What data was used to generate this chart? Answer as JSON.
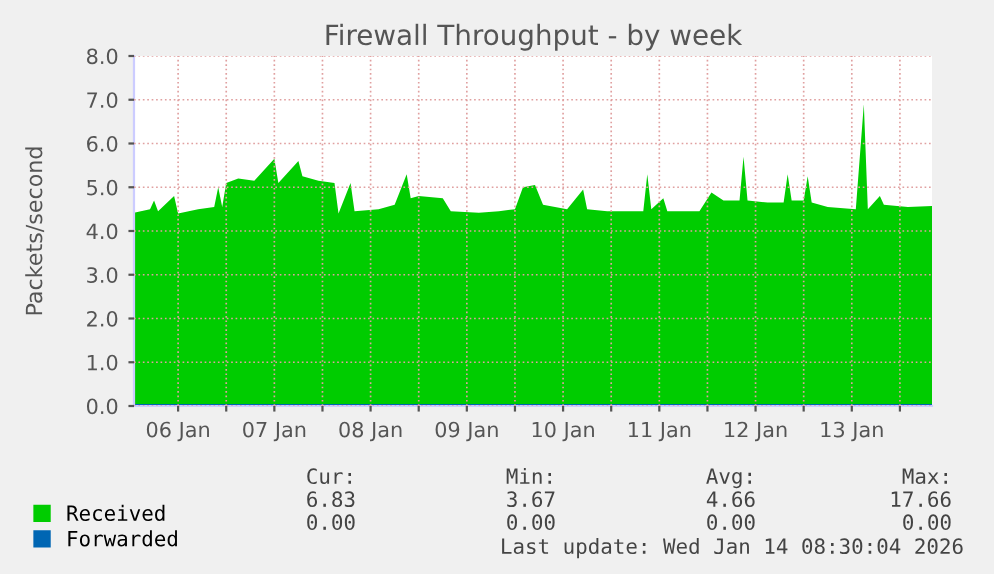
{
  "chart_data": {
    "type": "area",
    "title": "Firewall Throughput - by week",
    "ylabel": "Packets/second",
    "x": [
      "2026-01-06T01:00",
      "2026-01-06T05:00",
      "2026-01-06T06:00",
      "2026-01-06T07:00",
      "2026-01-06T11:00",
      "2026-01-06T12:00",
      "2026-01-06T17:00",
      "2026-01-06T21:00",
      "2026-01-06T22:00",
      "2026-01-06T23:00",
      "2026-01-07T00:00",
      "2026-01-07T03:00",
      "2026-01-07T07:00",
      "2026-01-07T12:00",
      "2026-01-07T13:00",
      "2026-01-07T18:00",
      "2026-01-07T19:00",
      "2026-01-07T23:00",
      "2026-01-08T03:00",
      "2026-01-08T04:00",
      "2026-01-08T07:00",
      "2026-01-08T08:00",
      "2026-01-08T14:00",
      "2026-01-08T18:00",
      "2026-01-08T21:00",
      "2026-01-08T22:00",
      "2026-01-09T00:00",
      "2026-01-09T06:00",
      "2026-01-09T08:00",
      "2026-01-09T15:00",
      "2026-01-09T20:00",
      "2026-01-10T00:00",
      "2026-01-10T02:00",
      "2026-01-10T05:00",
      "2026-01-10T07:00",
      "2026-01-10T13:00",
      "2026-01-10T17:00",
      "2026-01-10T18:00",
      "2026-01-10T23:00",
      "2026-01-11T08:00",
      "2026-01-11T09:00",
      "2026-01-11T10:00",
      "2026-01-11T13:00",
      "2026-01-11T14:00",
      "2026-01-11T22:00",
      "2026-01-12T01:00",
      "2026-01-12T04:00",
      "2026-01-12T08:00",
      "2026-01-12T09:00",
      "2026-01-12T10:00",
      "2026-01-12T15:00",
      "2026-01-12T19:00",
      "2026-01-12T20:00",
      "2026-01-12T21:00",
      "2026-01-13T00:00",
      "2026-01-13T01:00",
      "2026-01-13T02:00",
      "2026-01-13T06:00",
      "2026-01-13T13:00",
      "2026-01-13T15:00",
      "2026-01-13T16:00",
      "2026-01-13T19:00",
      "2026-01-13T20:00",
      "2026-01-14T02:00",
      "2026-01-14T08:00"
    ],
    "series": [
      {
        "name": "Received",
        "color": "#00cc00",
        "values": [
          4.42,
          4.5,
          4.7,
          4.45,
          4.8,
          4.4,
          4.5,
          4.55,
          5.0,
          4.55,
          5.1,
          5.2,
          5.15,
          5.65,
          5.1,
          5.6,
          5.25,
          5.15,
          5.1,
          4.4,
          5.1,
          4.45,
          4.5,
          4.6,
          5.3,
          4.75,
          4.8,
          4.75,
          4.45,
          4.42,
          4.45,
          4.5,
          5.0,
          5.05,
          4.6,
          4.5,
          4.95,
          4.5,
          4.45,
          4.45,
          5.3,
          4.5,
          4.75,
          4.45,
          4.45,
          4.88,
          4.7,
          4.7,
          5.7,
          4.7,
          4.65,
          4.65,
          5.3,
          4.7,
          4.7,
          5.25,
          4.65,
          4.55,
          4.5,
          6.9,
          4.5,
          4.8,
          4.6,
          4.55,
          4.57
        ]
      },
      {
        "name": "Forwarded",
        "color": "#0066b3",
        "type": "line",
        "x": [
          "2026-01-06T01:00",
          "2026-01-14T08:00"
        ],
        "values": [
          0.0,
          0.0
        ]
      }
    ],
    "xlim": [
      "2026-01-06T01:00",
      "2026-01-14T08:00"
    ],
    "xticks": [
      {
        "value": "2026-01-06T12:00",
        "label": "06 Jan"
      },
      {
        "value": "2026-01-07T00:00",
        "label": null
      },
      {
        "value": "2026-01-07T12:00",
        "label": "07 Jan"
      },
      {
        "value": "2026-01-08T00:00",
        "label": null
      },
      {
        "value": "2026-01-08T12:00",
        "label": "08 Jan"
      },
      {
        "value": "2026-01-09T00:00",
        "label": null
      },
      {
        "value": "2026-01-09T12:00",
        "label": "09 Jan"
      },
      {
        "value": "2026-01-10T00:00",
        "label": null
      },
      {
        "value": "2026-01-10T12:00",
        "label": "10 Jan"
      },
      {
        "value": "2026-01-11T00:00",
        "label": null
      },
      {
        "value": "2026-01-11T12:00",
        "label": "11 Jan"
      },
      {
        "value": "2026-01-12T00:00",
        "label": null
      },
      {
        "value": "2026-01-12T12:00",
        "label": "12 Jan"
      },
      {
        "value": "2026-01-13T00:00",
        "label": null
      },
      {
        "value": "2026-01-13T12:00",
        "label": "13 Jan"
      },
      {
        "value": "2026-01-14T00:00",
        "label": null
      }
    ],
    "ylim": [
      0,
      8
    ],
    "yticks": [
      {
        "value": 0,
        "label": "0.0"
      },
      {
        "value": 1,
        "label": "1.0"
      },
      {
        "value": 2,
        "label": "2.0"
      },
      {
        "value": 3,
        "label": "3.0"
      },
      {
        "value": 4,
        "label": "4.0"
      },
      {
        "value": 5,
        "label": "5.0"
      },
      {
        "value": 6,
        "label": "6.0"
      },
      {
        "value": 7,
        "label": "7.0"
      },
      {
        "value": 8,
        "label": "8.0"
      }
    ],
    "grid": true,
    "legend": "bottom",
    "annotations": [
      "Cur:",
      "Min:",
      "Avg:",
      "Max:",
      "6.83",
      "3.67",
      "4.66",
      "17.66",
      "0.00",
      "0.00",
      "0.00",
      "0.00",
      "Last update: Wed Jan 14 08:30:04 2026"
    ]
  }
}
